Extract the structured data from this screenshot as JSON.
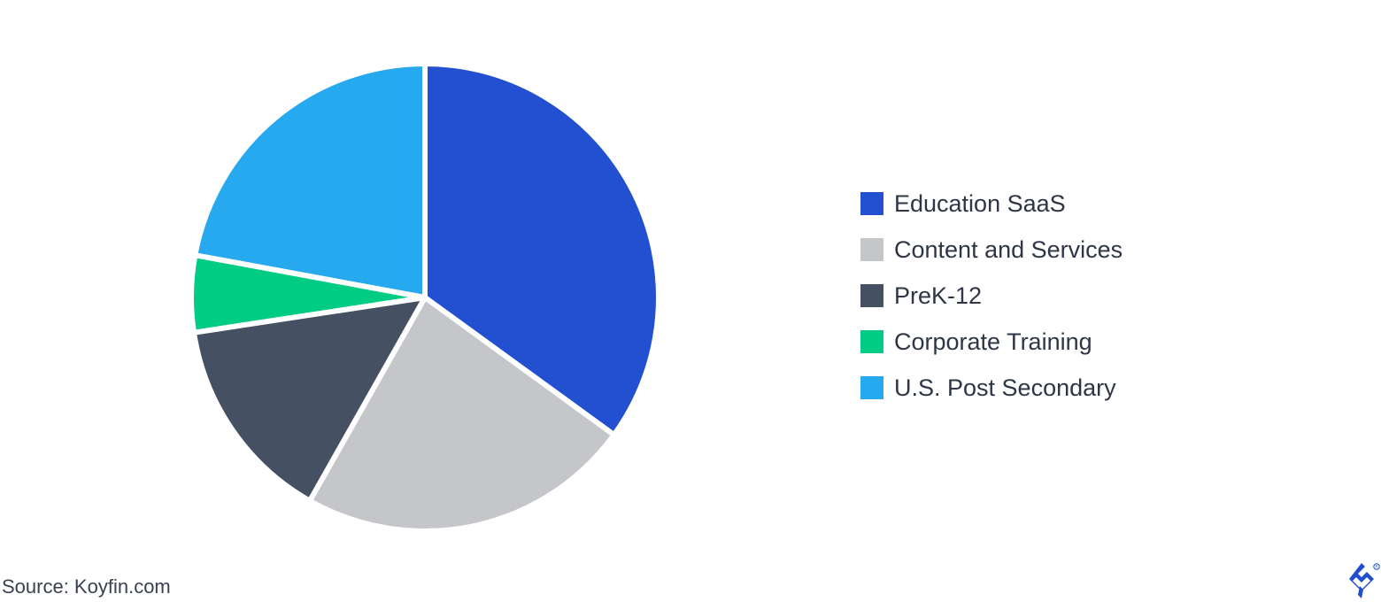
{
  "chart_data": {
    "type": "pie",
    "slices": [
      {
        "label": "Education SaaS",
        "value": 35.0,
        "color": "#2350d1"
      },
      {
        "label": "Content and Services",
        "value": 23.2,
        "color": "#c5c6ca"
      },
      {
        "label": "PreK-12",
        "value": 14.4,
        "color": "#455063"
      },
      {
        "label": "Corporate Training",
        "value": 5.3,
        "color": "#00cc83"
      },
      {
        "label": "U.S. Post Secondary",
        "value": 22.1,
        "color": "#26a9ef"
      }
    ],
    "legend_position": "right"
  },
  "footer": {
    "source": "Source: Koyfin.com",
    "logo_icon": "toptal-logo-icon",
    "logo_color": "#204ecf"
  }
}
